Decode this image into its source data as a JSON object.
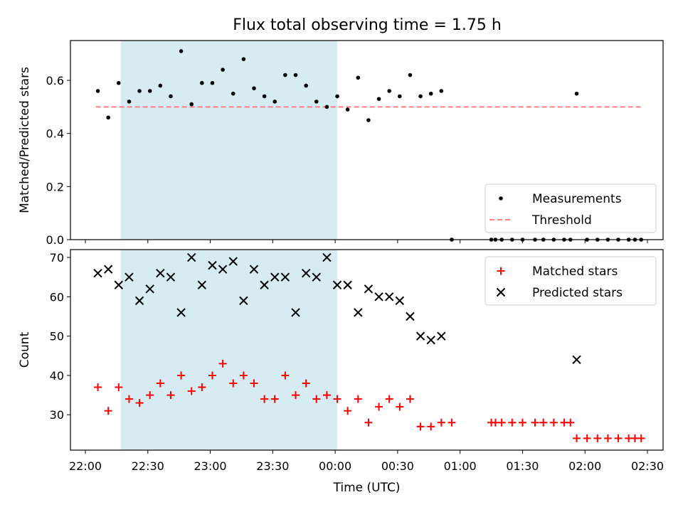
{
  "title": "Flux total observing time = 1.75 h",
  "colors": {
    "shade": "#add8e6",
    "threshold": "#ff7f7f",
    "measurement": "#000000",
    "matched": "#ff0000",
    "predicted": "#000000"
  },
  "chart_data": [
    {
      "type": "scatter",
      "ylabel": "Matched/Predicted stars",
      "xlim": [
        "22:00",
        "02:30"
      ],
      "ylim": [
        0,
        0.75
      ],
      "y_ticks": [
        "0.0",
        "0.2",
        "0.4",
        "0.6"
      ],
      "x_ticks": [],
      "shaded_span": [
        "22:17",
        "00:01"
      ],
      "legend": {
        "position": "lower-right",
        "entries": [
          "Measurements",
          "Threshold"
        ]
      },
      "threshold": 0.5,
      "threshold_range": [
        "22:05",
        "02:27"
      ],
      "series": [
        {
          "name": "Measurements",
          "x": [
            "22:06",
            "22:11",
            "22:16",
            "22:21",
            "22:26",
            "22:31",
            "22:36",
            "22:41",
            "22:46",
            "22:51",
            "22:56",
            "23:01",
            "23:06",
            "23:11",
            "23:16",
            "23:21",
            "23:26",
            "23:31",
            "23:36",
            "23:41",
            "23:46",
            "23:51",
            "23:56",
            "00:01",
            "00:06",
            "00:11",
            "00:16",
            "00:21",
            "00:26",
            "00:31",
            "00:36",
            "00:41",
            "00:46",
            "00:51",
            "00:56",
            "01:15",
            "01:17",
            "01:20",
            "01:25",
            "01:30",
            "01:36",
            "01:40",
            "01:45",
            "01:50",
            "01:53",
            "01:56",
            "02:01",
            "02:06",
            "02:11",
            "02:16",
            "02:21",
            "02:24",
            "02:27"
          ],
          "y": [
            0.56,
            0.46,
            0.59,
            0.52,
            0.56,
            0.56,
            0.58,
            0.54,
            0.71,
            0.51,
            0.59,
            0.59,
            0.64,
            0.55,
            0.68,
            0.57,
            0.54,
            0.52,
            0.62,
            0.62,
            0.58,
            0.52,
            0.5,
            0.54,
            0.49,
            0.61,
            0.45,
            0.53,
            0.56,
            0.54,
            0.62,
            0.54,
            0.55,
            0.56,
            0.0,
            0.0,
            0.0,
            0.0,
            0.0,
            0.0,
            0.0,
            0.0,
            0.0,
            0.0,
            0.0,
            0.55,
            0.0,
            0.0,
            0.0,
            0.0,
            0.0,
            0.0,
            0.0
          ]
        }
      ]
    },
    {
      "type": "scatter",
      "ylabel": "Count",
      "xlabel": "Time (UTC)",
      "xlim": [
        "22:00",
        "02:30"
      ],
      "ylim": [
        21,
        72
      ],
      "y_ticks": [
        "30",
        "40",
        "50",
        "60",
        "70"
      ],
      "x_ticks": [
        "22:00",
        "22:30",
        "23:00",
        "23:30",
        "00:00",
        "00:30",
        "01:00",
        "01:30",
        "02:00",
        "02:30"
      ],
      "shaded_span": [
        "22:17",
        "00:01"
      ],
      "legend": {
        "position": "top-right",
        "entries": [
          "Matched stars",
          "Predicted stars"
        ]
      },
      "series": [
        {
          "name": "Matched stars",
          "marker": "plus",
          "x": [
            "22:06",
            "22:11",
            "22:16",
            "22:21",
            "22:26",
            "22:31",
            "22:36",
            "22:41",
            "22:46",
            "22:51",
            "22:56",
            "23:01",
            "23:06",
            "23:11",
            "23:16",
            "23:21",
            "23:26",
            "23:31",
            "23:36",
            "23:41",
            "23:46",
            "23:51",
            "23:56",
            "00:01",
            "00:06",
            "00:11",
            "00:16",
            "00:21",
            "00:26",
            "00:31",
            "00:36",
            "00:41",
            "00:46",
            "00:51",
            "00:56",
            "01:15",
            "01:17",
            "01:20",
            "01:25",
            "01:30",
            "01:36",
            "01:40",
            "01:45",
            "01:50",
            "01:53",
            "01:56",
            "02:01",
            "02:06",
            "02:11",
            "02:16",
            "02:21",
            "02:24",
            "02:27"
          ],
          "y": [
            37,
            31,
            37,
            34,
            33,
            35,
            38,
            35,
            40,
            36,
            37,
            40,
            43,
            38,
            40,
            38,
            34,
            34,
            40,
            35,
            38,
            34,
            35,
            34,
            31,
            34,
            28,
            32,
            34,
            32,
            34,
            27,
            27,
            28,
            28,
            28,
            28,
            28,
            28,
            28,
            28,
            28,
            28,
            28,
            28,
            24,
            24,
            24,
            24,
            24,
            24,
            24,
            24
          ]
        },
        {
          "name": "Predicted stars",
          "marker": "x",
          "x": [
            "22:06",
            "22:11",
            "22:16",
            "22:21",
            "22:26",
            "22:31",
            "22:36",
            "22:41",
            "22:46",
            "22:51",
            "22:56",
            "23:01",
            "23:06",
            "23:11",
            "23:16",
            "23:21",
            "23:26",
            "23:31",
            "23:36",
            "23:41",
            "23:46",
            "23:51",
            "23:56",
            "00:01",
            "00:06",
            "00:11",
            "00:16",
            "00:21",
            "00:26",
            "00:31",
            "00:36",
            "00:41",
            "00:46",
            "00:51",
            "01:56"
          ],
          "y": [
            66,
            67,
            63,
            65,
            59,
            62,
            66,
            65,
            56,
            70,
            63,
            68,
            67,
            69,
            59,
            67,
            63,
            65,
            65,
            56,
            66,
            65,
            70,
            63,
            63,
            56,
            62,
            60,
            60,
            59,
            55,
            50,
            49,
            50,
            44
          ]
        }
      ]
    }
  ]
}
